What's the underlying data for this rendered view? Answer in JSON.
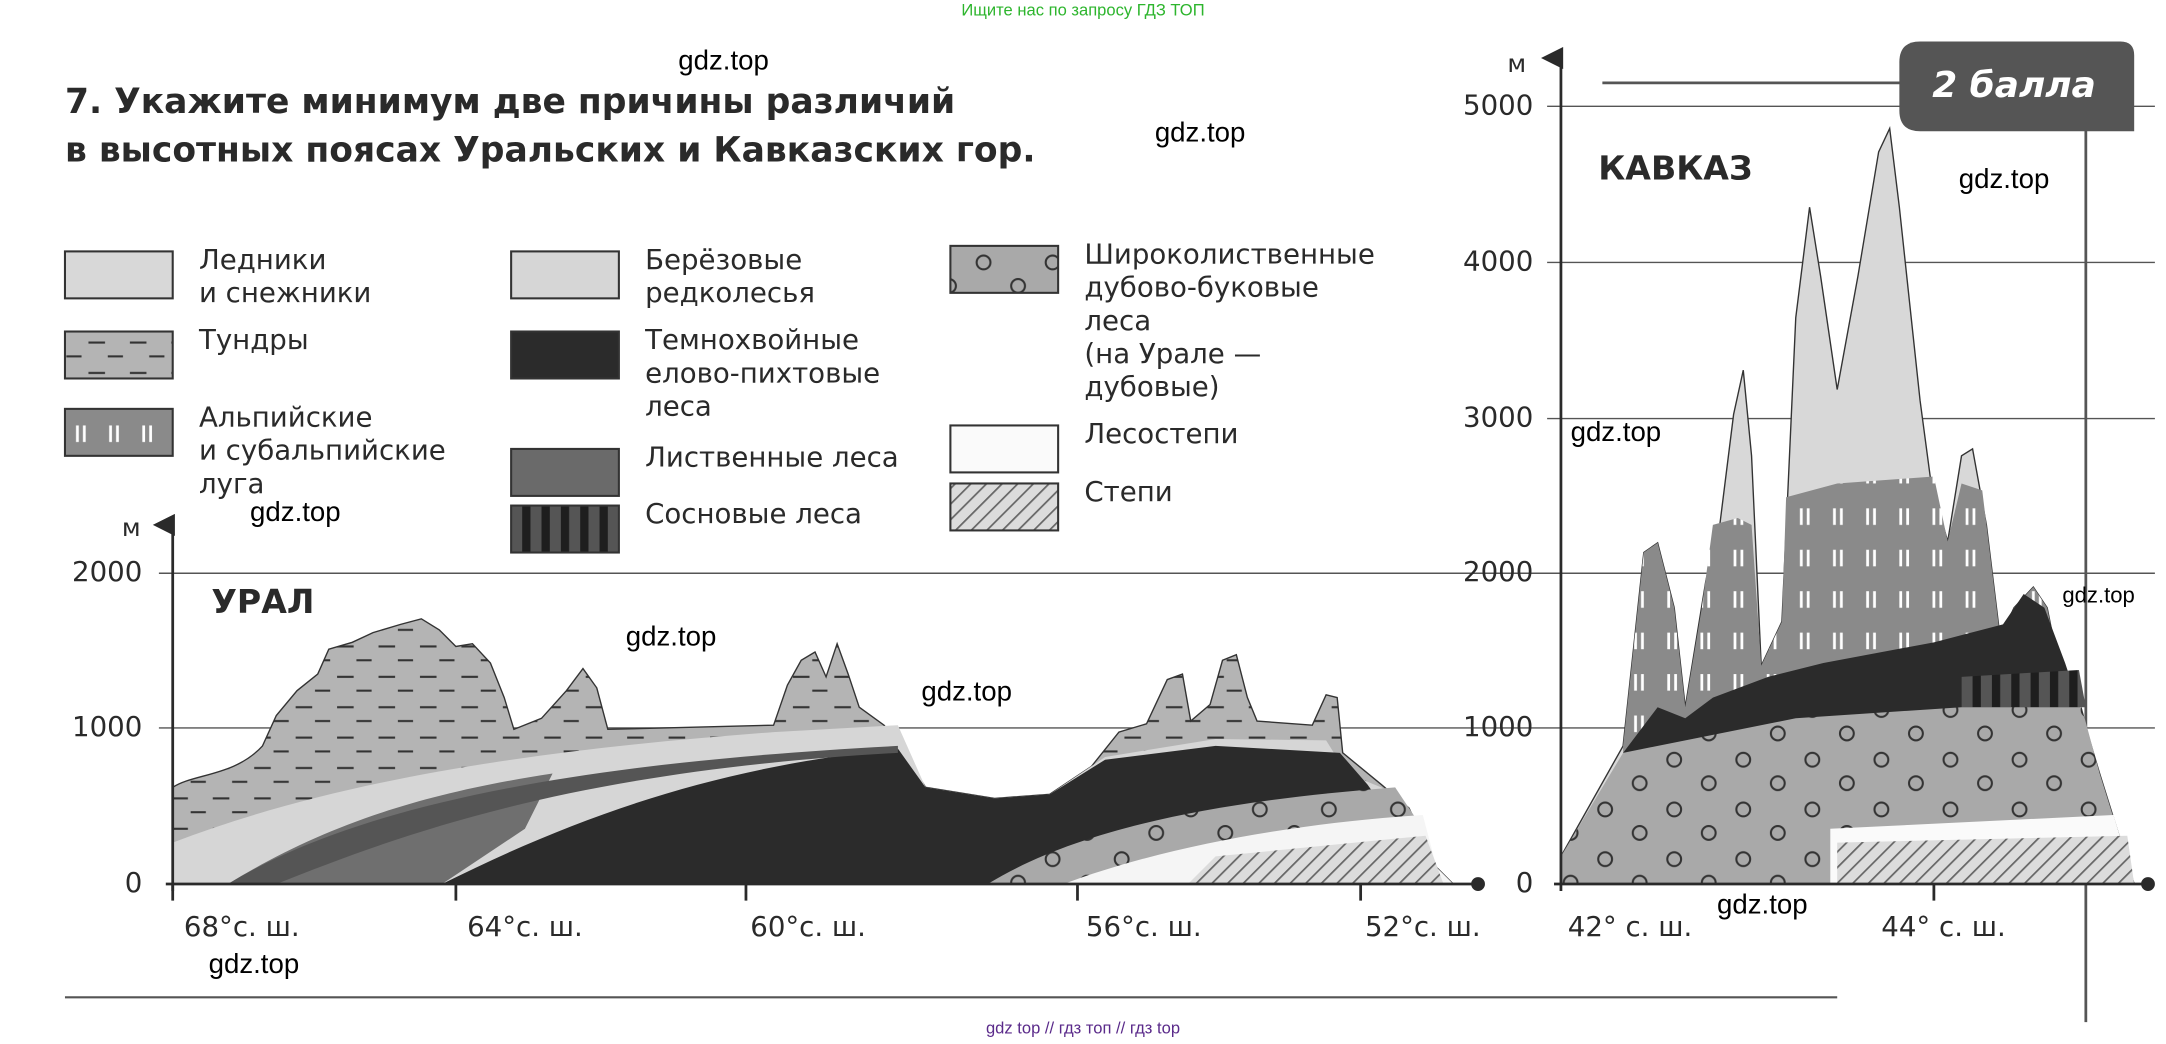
{
  "banner": "Ищите нас по запросу ГДЗ ТОП",
  "task": {
    "lines": [
      "7. Укажите минимум две причины различий",
      "в высотных поясах Уральских и Кавказских гор."
    ]
  },
  "badge": "2 балла",
  "legend": {
    "items": [
      {
        "lines": [
          "Ледники",
          "и снежники"
        ]
      },
      {
        "lines": [
          "Тундры"
        ]
      },
      {
        "lines": [
          "Альпийские",
          "и субальпийские",
          "луга"
        ]
      },
      {
        "lines": [
          "Берёзовые",
          "редколесья"
        ]
      },
      {
        "lines": [
          "Темнохвойные",
          "елово-пихтовые",
          "леса"
        ]
      },
      {
        "lines": [
          "Лиственные леса"
        ]
      },
      {
        "lines": [
          "Сосновые леса"
        ]
      },
      {
        "lines": [
          "Широколиственные",
          "дубово-буковые",
          "леса",
          "(на Урале —",
          "дубовые)"
        ]
      },
      {
        "lines": [
          "Лесостепи"
        ]
      },
      {
        "lines": [
          "Степи"
        ]
      }
    ]
  },
  "ural": {
    "title": "УРАЛ",
    "unit": "м",
    "yticks": [
      "2000",
      "1000",
      "0"
    ],
    "xticks": [
      "68°с. ш.",
      "64°с. ш.",
      "60°с. ш.",
      "56°с. ш.",
      "52°с. ш."
    ]
  },
  "kavkaz": {
    "title": "КАВКАЗ",
    "unit": "м",
    "yticks": [
      "5000",
      "4000",
      "3000",
      "2000",
      "1000",
      "0"
    ],
    "xticks": [
      "42° с. ш.",
      "44° с. ш."
    ]
  },
  "watermarks": [
    "gdz.top",
    "gdz.top",
    "gdz.top",
    "gdz.top",
    "gdz.top",
    "gdz.top",
    "gdz.top",
    "gdz.top",
    "gdz.top",
    "gdz.top"
  ],
  "footer": "gdz top  //  гдз топ  //  гдз top"
}
